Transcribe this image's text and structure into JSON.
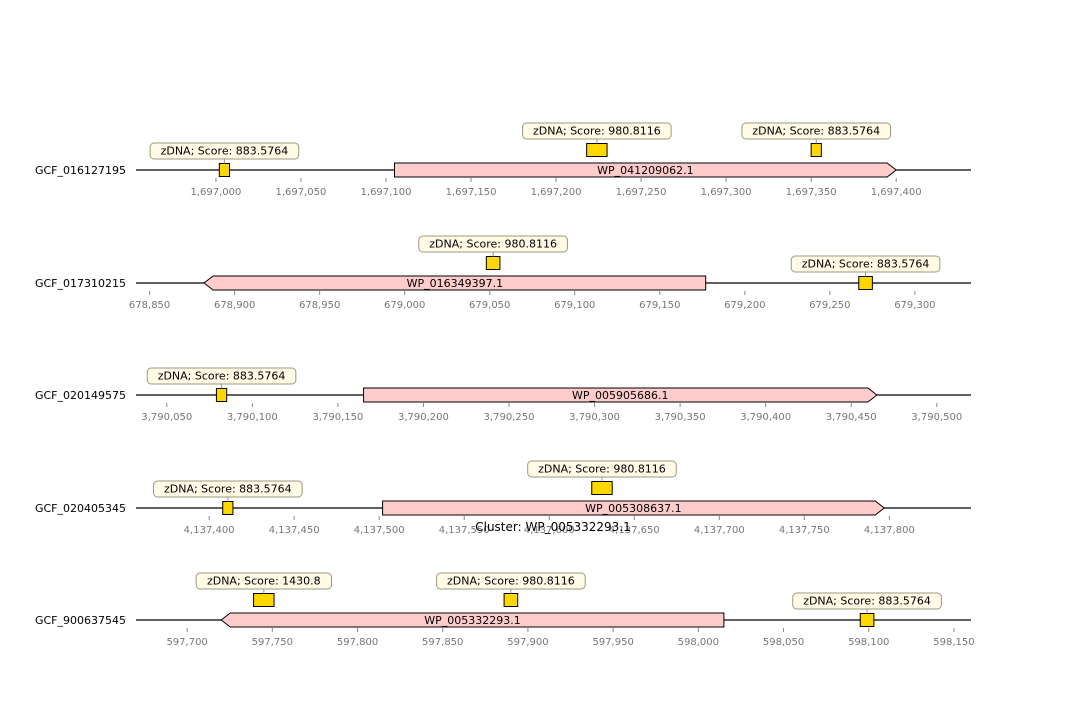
{
  "title": "Cluster: WP_005332293.1",
  "colors": {
    "gene_fill": "#ffcccc",
    "feature_fill": "#ffd700",
    "annotation_bg": "#fffbe6",
    "annotation_border": "#9a9a80",
    "tick_text": "#777777"
  },
  "tracks": [
    {
      "name": "GCF_016127195",
      "gene": {
        "label": "WP_041209062.1",
        "start": 1697105,
        "end": 1697400,
        "strand": "+"
      },
      "features": [
        {
          "label": "zDNA; Score: 883.5764",
          "start": 1697002,
          "end": 1697008,
          "level": 0
        },
        {
          "label": "zDNA; Score: 980.8116",
          "start": 1697218,
          "end": 1697230,
          "level": 1
        },
        {
          "label": "zDNA; Score: 883.5764",
          "start": 1697350,
          "end": 1697356,
          "level": 1
        }
      ],
      "ticks": [
        "1,697,000",
        "1,697,050",
        "1,697,100",
        "1,697,150",
        "1,697,200",
        "1,697,250",
        "1,697,300",
        "1,697,350",
        "1,697,400"
      ],
      "tick_values": [
        1697000,
        1697050,
        1697100,
        1697150,
        1697200,
        1697250,
        1697300,
        1697350,
        1697400
      ],
      "range": [
        1696953,
        1697444
      ]
    },
    {
      "name": "GCF_017310215",
      "gene": {
        "label": "WP_016349397.1",
        "start": 678882,
        "end": 679177,
        "strand": "-"
      },
      "features": [
        {
          "label": "zDNA; Score: 980.8116",
          "start": 679048,
          "end": 679056,
          "level": 1
        },
        {
          "label": "zDNA; Score: 883.5764",
          "start": 679267,
          "end": 679275,
          "level": 0
        }
      ],
      "ticks": [
        "678,850",
        "678,900",
        "678,950",
        "679,000",
        "679,050",
        "679,100",
        "679,150",
        "679,200",
        "679,250",
        "679,300"
      ],
      "tick_values": [
        678850,
        678900,
        678950,
        679000,
        679050,
        679100,
        679150,
        679200,
        679250,
        679300
      ],
      "range": [
        678842,
        679333
      ]
    },
    {
      "name": "GCF_020149575",
      "gene": {
        "label": "WP_005905686.1",
        "start": 3790165,
        "end": 3790465,
        "strand": "+"
      },
      "features": [
        {
          "label": "zDNA; Score: 883.5764",
          "start": 3790079,
          "end": 3790085,
          "level": 0
        }
      ],
      "ticks": [
        "3,790,050",
        "3,790,100",
        "3,790,150",
        "3,790,200",
        "3,790,250",
        "3,790,300",
        "3,790,350",
        "3,790,400",
        "3,790,450",
        "3,790,500"
      ],
      "tick_values": [
        3790050,
        3790100,
        3790150,
        3790200,
        3790250,
        3790300,
        3790350,
        3790400,
        3790450,
        3790500
      ],
      "range": [
        3790032,
        3790520
      ]
    },
    {
      "name": "GCF_020405345",
      "gene": {
        "label": "WP_005308637.1",
        "start": 4137502,
        "end": 4137797,
        "strand": "+"
      },
      "features": [
        {
          "label": "zDNA; Score: 883.5764",
          "start": 4137408,
          "end": 4137414,
          "level": 0
        },
        {
          "label": "zDNA; Score: 980.8116",
          "start": 4137625,
          "end": 4137637,
          "level": 1
        }
      ],
      "ticks": [
        "4,137,400",
        "4,137,450",
        "4,137,500",
        "4,137,550",
        "4,137,600",
        "4,137,650",
        "4,137,700",
        "4,137,750",
        "4,137,800"
      ],
      "tick_values": [
        4137400,
        4137450,
        4137500,
        4137550,
        4137600,
        4137650,
        4137700,
        4137750,
        4137800
      ],
      "range": [
        4137357,
        4137848
      ]
    },
    {
      "name": "GCF_900637545",
      "gene": {
        "label": "WP_005332293.1",
        "start": 597720,
        "end": 598015,
        "strand": "-"
      },
      "features": [
        {
          "label": "zDNA; Score: 1430.8",
          "start": 597739,
          "end": 597751,
          "level": 1
        },
        {
          "label": "zDNA; Score: 980.8116",
          "start": 597886,
          "end": 597894,
          "level": 1
        },
        {
          "label": "zDNA; Score: 883.5764",
          "start": 598095,
          "end": 598103,
          "level": 0
        }
      ],
      "ticks": [
        "597,700",
        "597,750",
        "597,800",
        "597,850",
        "597,900",
        "597,950",
        "598,000",
        "598,050",
        "598,100",
        "598,150"
      ],
      "tick_values": [
        597700,
        597750,
        597800,
        597850,
        597900,
        597950,
        598000,
        598050,
        598100,
        598150
      ],
      "range": [
        597670,
        598160
      ]
    }
  ]
}
